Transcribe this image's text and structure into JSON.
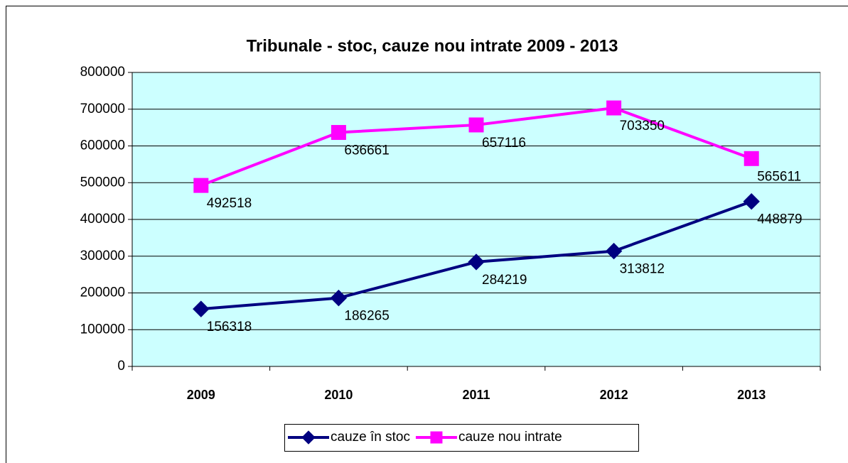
{
  "chart_data": {
    "type": "line",
    "title": "Tribunale - stoc, cauze nou intrate 2009 - 2013",
    "categories": [
      "2009",
      "2010",
      "2011",
      "2012",
      "2013"
    ],
    "series": [
      {
        "name": "cauze în stoc",
        "color": "#000080",
        "marker": "diamond",
        "values": [
          156318,
          186265,
          284219,
          313812,
          448879
        ]
      },
      {
        "name": "cauze nou intrate",
        "color": "#ff00ff",
        "marker": "square",
        "values": [
          492518,
          636661,
          657116,
          703350,
          565611
        ]
      }
    ],
    "ylim": [
      0,
      800000
    ],
    "yticks": [
      0,
      100000,
      200000,
      300000,
      400000,
      500000,
      600000,
      700000,
      800000
    ],
    "grid": true,
    "legend": "bottom",
    "plot_background": "#ccffff"
  }
}
